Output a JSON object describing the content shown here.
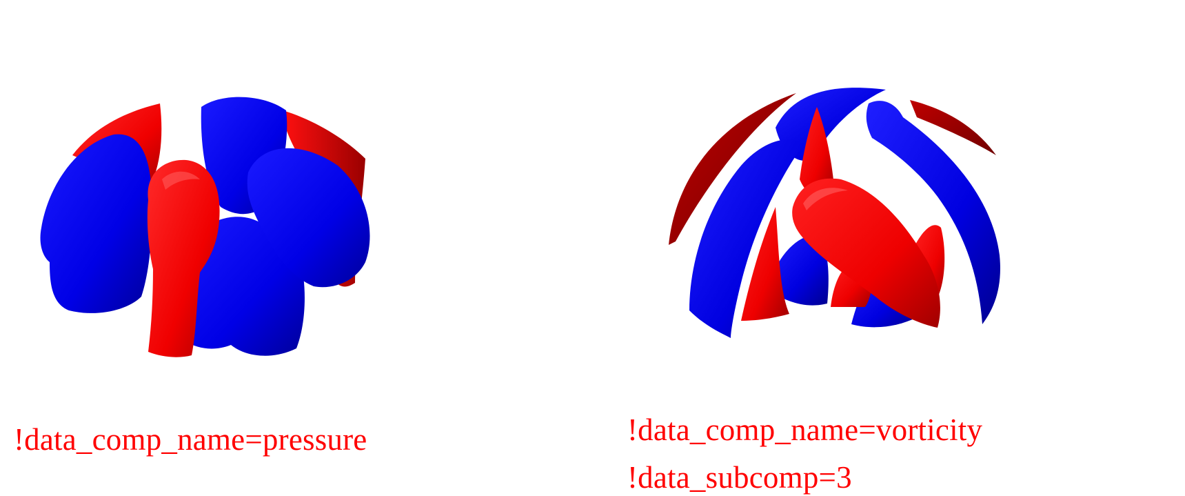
{
  "colors": {
    "positive": "#ff0000",
    "negative": "#0000ff",
    "positive_dark": "#b30000",
    "negative_dark": "#000099",
    "caption": "#ff0000"
  },
  "panels": [
    {
      "caption_lines": [
        "!data_comp_name=pressure"
      ]
    },
    {
      "caption_lines": [
        "!data_comp_name=vorticity",
        "!data_subcomp=3"
      ]
    }
  ]
}
